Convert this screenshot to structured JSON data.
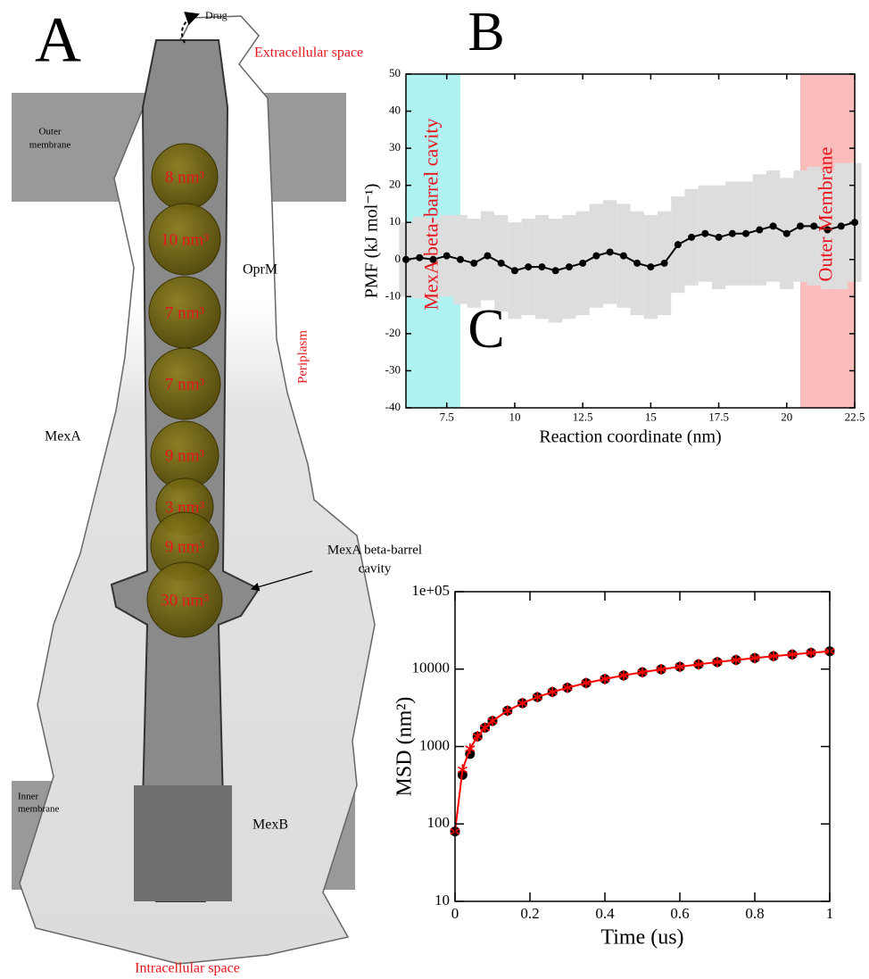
{
  "panel_a": {
    "label": "A",
    "drug": "Drug",
    "extracellular": "Extracellular space",
    "outer_membrane": [
      "Outer",
      "membrane"
    ],
    "oprm": "OprM",
    "mexa": "MexA",
    "periplasm": "Periplasm",
    "cavity": [
      "MexA beta-barrel",
      "cavity"
    ],
    "inner_membrane": [
      "Inner",
      "membrane"
    ],
    "mexb": "MexB",
    "intracellular": "Intracellular space",
    "spheres": [
      "8 nm³",
      "10 nm³",
      "7 nm³",
      "7 nm³",
      "9 nm³",
      "3 nm³",
      "9 nm³",
      "30 nm³"
    ]
  },
  "chart_data": [
    {
      "type": "line",
      "panel_label": "B",
      "xlabel": "Reaction coordinate (nm)",
      "ylabel": "PMF (kJ mol⁻¹)",
      "xlim": [
        6,
        22.5
      ],
      "ylim": [
        -40,
        50
      ],
      "xticks": [
        7.5,
        10,
        12.5,
        15,
        17.5,
        20,
        22.5
      ],
      "yticks": [
        -40,
        -30,
        -20,
        -10,
        0,
        10,
        20,
        30,
        40,
        50
      ],
      "regions": [
        {
          "label": "MexA beta-barrel cavity",
          "from": 6,
          "to": 8,
          "color": "#aef2f2"
        },
        {
          "label": "Outer Membrane",
          "from": 20.5,
          "to": 22.5,
          "color": "#fbbcbc"
        }
      ],
      "x": [
        6,
        6.5,
        7,
        7.5,
        8,
        8.5,
        9,
        9.5,
        10,
        10.5,
        11,
        11.5,
        12,
        12.5,
        13,
        13.5,
        14,
        14.5,
        15,
        15.5,
        16,
        16.5,
        17,
        17.5,
        18,
        18.5,
        19,
        19.5,
        20,
        20.5,
        21,
        21.5,
        22,
        22.5
      ],
      "series": [
        {
          "color": "#000000",
          "band_color": "#dddddd",
          "marker": "circle",
          "values": [
            0,
            0.5,
            0,
            1,
            0,
            -1,
            1,
            -1,
            -3,
            -2,
            -2,
            -3,
            -2,
            -1,
            1,
            2,
            1,
            -1,
            -2,
            -1,
            4,
            6,
            7,
            6,
            7,
            7,
            8,
            9,
            7,
            9,
            9,
            8,
            9,
            10
          ],
          "errors": [
            10,
            11,
            11,
            11,
            12,
            12,
            12,
            13,
            13,
            13,
            14,
            14,
            14,
            14,
            14,
            14,
            14,
            14,
            14,
            14,
            13,
            13,
            13,
            14,
            14,
            14,
            15,
            15,
            15,
            15,
            16,
            16,
            17,
            16
          ]
        }
      ]
    },
    {
      "type": "line",
      "panel_label": "C",
      "xlabel": "Time (us)",
      "ylabel": "MSD (nm²)",
      "yscale": "log",
      "xlim": [
        0,
        1
      ],
      "ylim": [
        10,
        100000
      ],
      "xticks": [
        0,
        0.2,
        0.4,
        0.6,
        0.8,
        1
      ],
      "yticks": [
        10,
        100,
        1000,
        10000,
        {
          "value": 100000,
          "label": "1e+05"
        }
      ],
      "x": [
        0,
        0.02,
        0.04,
        0.06,
        0.08,
        0.1,
        0.14,
        0.18,
        0.22,
        0.26,
        0.3,
        0.35,
        0.4,
        0.45,
        0.5,
        0.55,
        0.6,
        0.65,
        0.7,
        0.75,
        0.8,
        0.85,
        0.9,
        0.95,
        1
      ],
      "series": [
        {
          "color": "#000000",
          "marker": "circle",
          "line": false,
          "values": [
            80,
            430,
            800,
            1350,
            1750,
            2140,
            2900,
            3630,
            4350,
            5060,
            5750,
            6610,
            7450,
            8290,
            9110,
            9930,
            10730,
            11540,
            12330,
            13120,
            13910,
            14690,
            15460,
            16230,
            17000
          ]
        },
        {
          "color": "#ff0000",
          "marker": "star",
          "line": true,
          "values": [
            80,
            503,
            939,
            1352,
            1750,
            2140,
            2900,
            3630,
            4350,
            5060,
            5750,
            6610,
            7450,
            8290,
            9110,
            9930,
            10730,
            11540,
            12330,
            13120,
            13910,
            14690,
            15460,
            16230,
            17000
          ]
        }
      ]
    }
  ]
}
